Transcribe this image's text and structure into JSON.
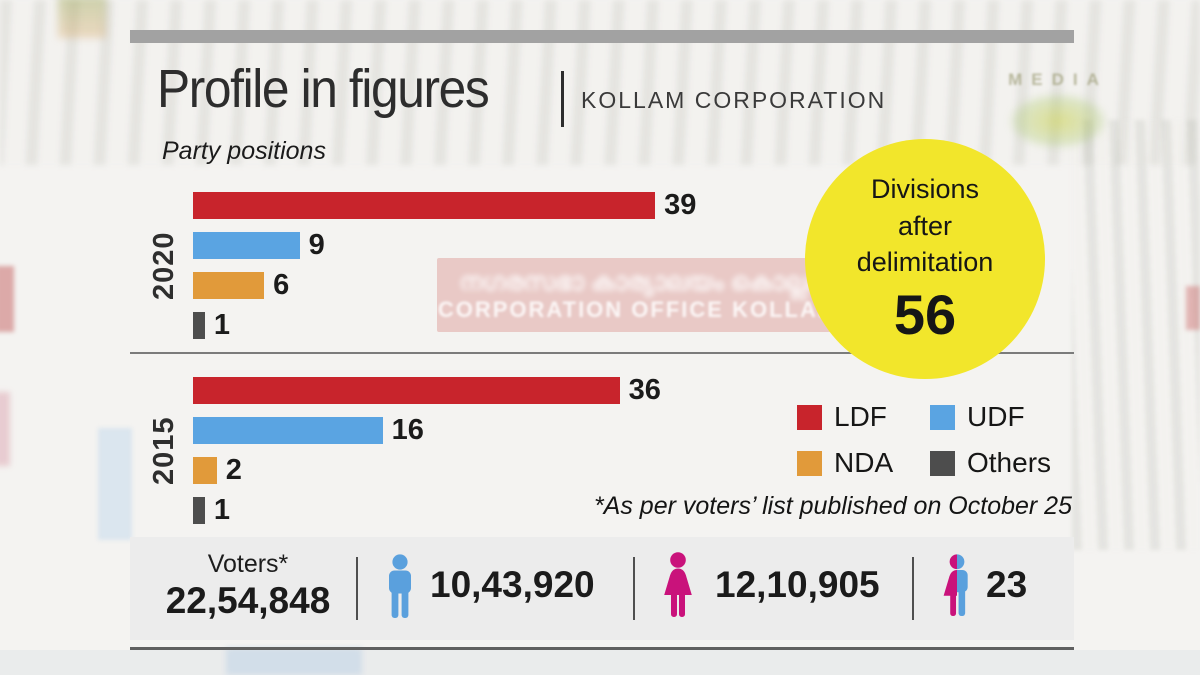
{
  "header": {
    "title": "Profile in figures",
    "org": "KOLLAM CORPORATION"
  },
  "chart_data": {
    "type": "bar",
    "orientation": "horizontal",
    "title": "Party positions",
    "xlim": [
      0,
      40
    ],
    "grid": false,
    "legend_position": "right-below-badge",
    "colors": {
      "LDF": "#c8242c",
      "UDF": "#5aa4e2",
      "NDA": "#e19a3a",
      "Others": "#4d4d4d"
    },
    "groups": [
      {
        "year": "2020",
        "bars": [
          {
            "party": "LDF",
            "value": 39
          },
          {
            "party": "UDF",
            "value": 9
          },
          {
            "party": "NDA",
            "value": 6
          },
          {
            "party": "Others",
            "value": 1
          }
        ]
      },
      {
        "year": "2015",
        "bars": [
          {
            "party": "LDF",
            "value": 36
          },
          {
            "party": "UDF",
            "value": 16
          },
          {
            "party": "NDA",
            "value": 2
          },
          {
            "party": "Others",
            "value": 1
          }
        ]
      }
    ]
  },
  "legend": {
    "items": [
      {
        "label": "LDF",
        "color": "#c8242c"
      },
      {
        "label": "UDF",
        "color": "#5aa4e2"
      },
      {
        "label": "NDA",
        "color": "#e19a3a"
      },
      {
        "label": "Others",
        "color": "#4d4d4d"
      }
    ]
  },
  "badge": {
    "line1": "Divisions",
    "line2": "after",
    "line3": "delimitation",
    "value": "56",
    "color": "#f2e62b"
  },
  "footnote": "*As per voters’ list published on October 25",
  "voters_panel": {
    "label": "Voters*",
    "total": "22,54,848",
    "male_count": "10,43,920",
    "female_count": "12,10,905",
    "transgender_count": "23",
    "male_color": "#5aa0dd",
    "female_color": "#c9127b"
  },
  "background": {
    "banner_line1": "നഗരസഭാ കാര്യാലയം കൊല്ലം",
    "banner_line2": "CORPORATION OFFICE KOLLAM",
    "watermark": "MEDIA"
  }
}
